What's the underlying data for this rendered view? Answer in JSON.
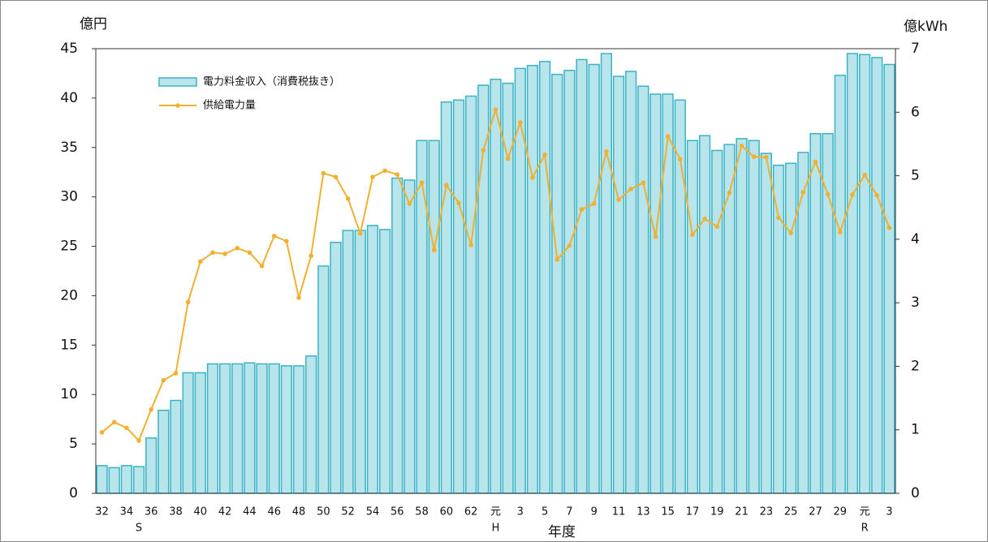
{
  "chart_data": {
    "type": "bar-line",
    "y_label": "億円",
    "y2_label": "億kWh",
    "x_label": "年度",
    "categories": [
      "32",
      null,
      "34",
      null,
      "36",
      null,
      "38",
      null,
      "40",
      null,
      "42",
      null,
      "44",
      null,
      "46",
      null,
      "48",
      null,
      "50",
      null,
      "52",
      null,
      "54",
      null,
      "56",
      null,
      "58",
      null,
      "60",
      null,
      "62",
      null,
      "元",
      null,
      "3",
      null,
      "5",
      null,
      "7",
      null,
      "9",
      null,
      "11",
      null,
      "13",
      null,
      "15",
      null,
      "17",
      null,
      "19",
      null,
      "21",
      null,
      "23",
      null,
      "25",
      null,
      "27",
      null,
      "29",
      null,
      "元",
      null,
      "3"
    ],
    "eras": [
      null,
      null,
      null,
      "S",
      null,
      null,
      null,
      null,
      null,
      null,
      null,
      null,
      null,
      null,
      null,
      null,
      null,
      null,
      null,
      null,
      null,
      null,
      null,
      null,
      null,
      null,
      null,
      null,
      null,
      null,
      null,
      null,
      "H",
      null,
      null,
      null,
      null,
      null,
      null,
      null,
      null,
      null,
      null,
      null,
      null,
      null,
      null,
      null,
      null,
      null,
      null,
      null,
      null,
      null,
      null,
      null,
      null,
      null,
      null,
      null,
      null,
      null,
      "R",
      null,
      null
    ],
    "series": [
      {
        "name": "電力料金収入（消費税抜き）",
        "type": "bar",
        "color": "#b8e4ec",
        "edge": "#3ab3c4",
        "values": [
          2.8,
          2.6,
          2.8,
          2.7,
          5.6,
          8.4,
          9.4,
          12.2,
          12.2,
          13.1,
          13.1,
          13.1,
          13.2,
          13.1,
          13.1,
          12.9,
          12.9,
          13.9,
          23.0,
          25.4,
          26.6,
          26.6,
          27.1,
          26.7,
          31.9,
          31.7,
          35.7,
          35.7,
          39.6,
          39.8,
          40.2,
          41.3,
          41.9,
          41.5,
          43.0,
          43.3,
          43.7,
          42.4,
          42.8,
          43.9,
          43.4,
          44.5,
          42.2,
          42.7,
          41.2,
          40.4,
          40.4,
          39.8,
          35.7,
          36.2,
          34.7,
          35.3,
          35.9,
          35.7,
          34.4,
          33.2,
          33.4,
          34.5,
          36.4,
          36.4,
          42.3,
          44.5,
          44.4,
          44.1,
          43.4
        ]
      },
      {
        "name": "供給電力量",
        "type": "line",
        "axis": "y2",
        "color": "#f0b030",
        "values": [
          0.96,
          1.12,
          1.03,
          0.83,
          1.32,
          1.78,
          1.89,
          3.01,
          3.65,
          3.79,
          3.77,
          3.86,
          3.79,
          3.58,
          4.05,
          3.97,
          3.08,
          3.74,
          5.04,
          4.98,
          4.64,
          4.09,
          4.98,
          5.08,
          5.02,
          4.56,
          4.89,
          3.83,
          4.85,
          4.57,
          3.91,
          5.4,
          6.04,
          5.27,
          5.84,
          4.97,
          5.33,
          3.68,
          3.9,
          4.47,
          4.56,
          5.38,
          4.62,
          4.79,
          4.89,
          4.04,
          5.62,
          5.26,
          4.07,
          4.32,
          4.2,
          4.73,
          5.47,
          5.3,
          5.29,
          4.34,
          4.1,
          4.74,
          5.22,
          4.71,
          4.11,
          4.7,
          5.01,
          4.69,
          4.18
        ]
      }
    ],
    "ylim": [
      0,
      45
    ],
    "yticks": [
      0,
      5,
      10,
      15,
      20,
      25,
      30,
      35,
      40,
      45
    ],
    "y2lim": [
      0,
      7
    ],
    "y2ticks": [
      0,
      1,
      2,
      3,
      4,
      5,
      6,
      7
    ]
  }
}
